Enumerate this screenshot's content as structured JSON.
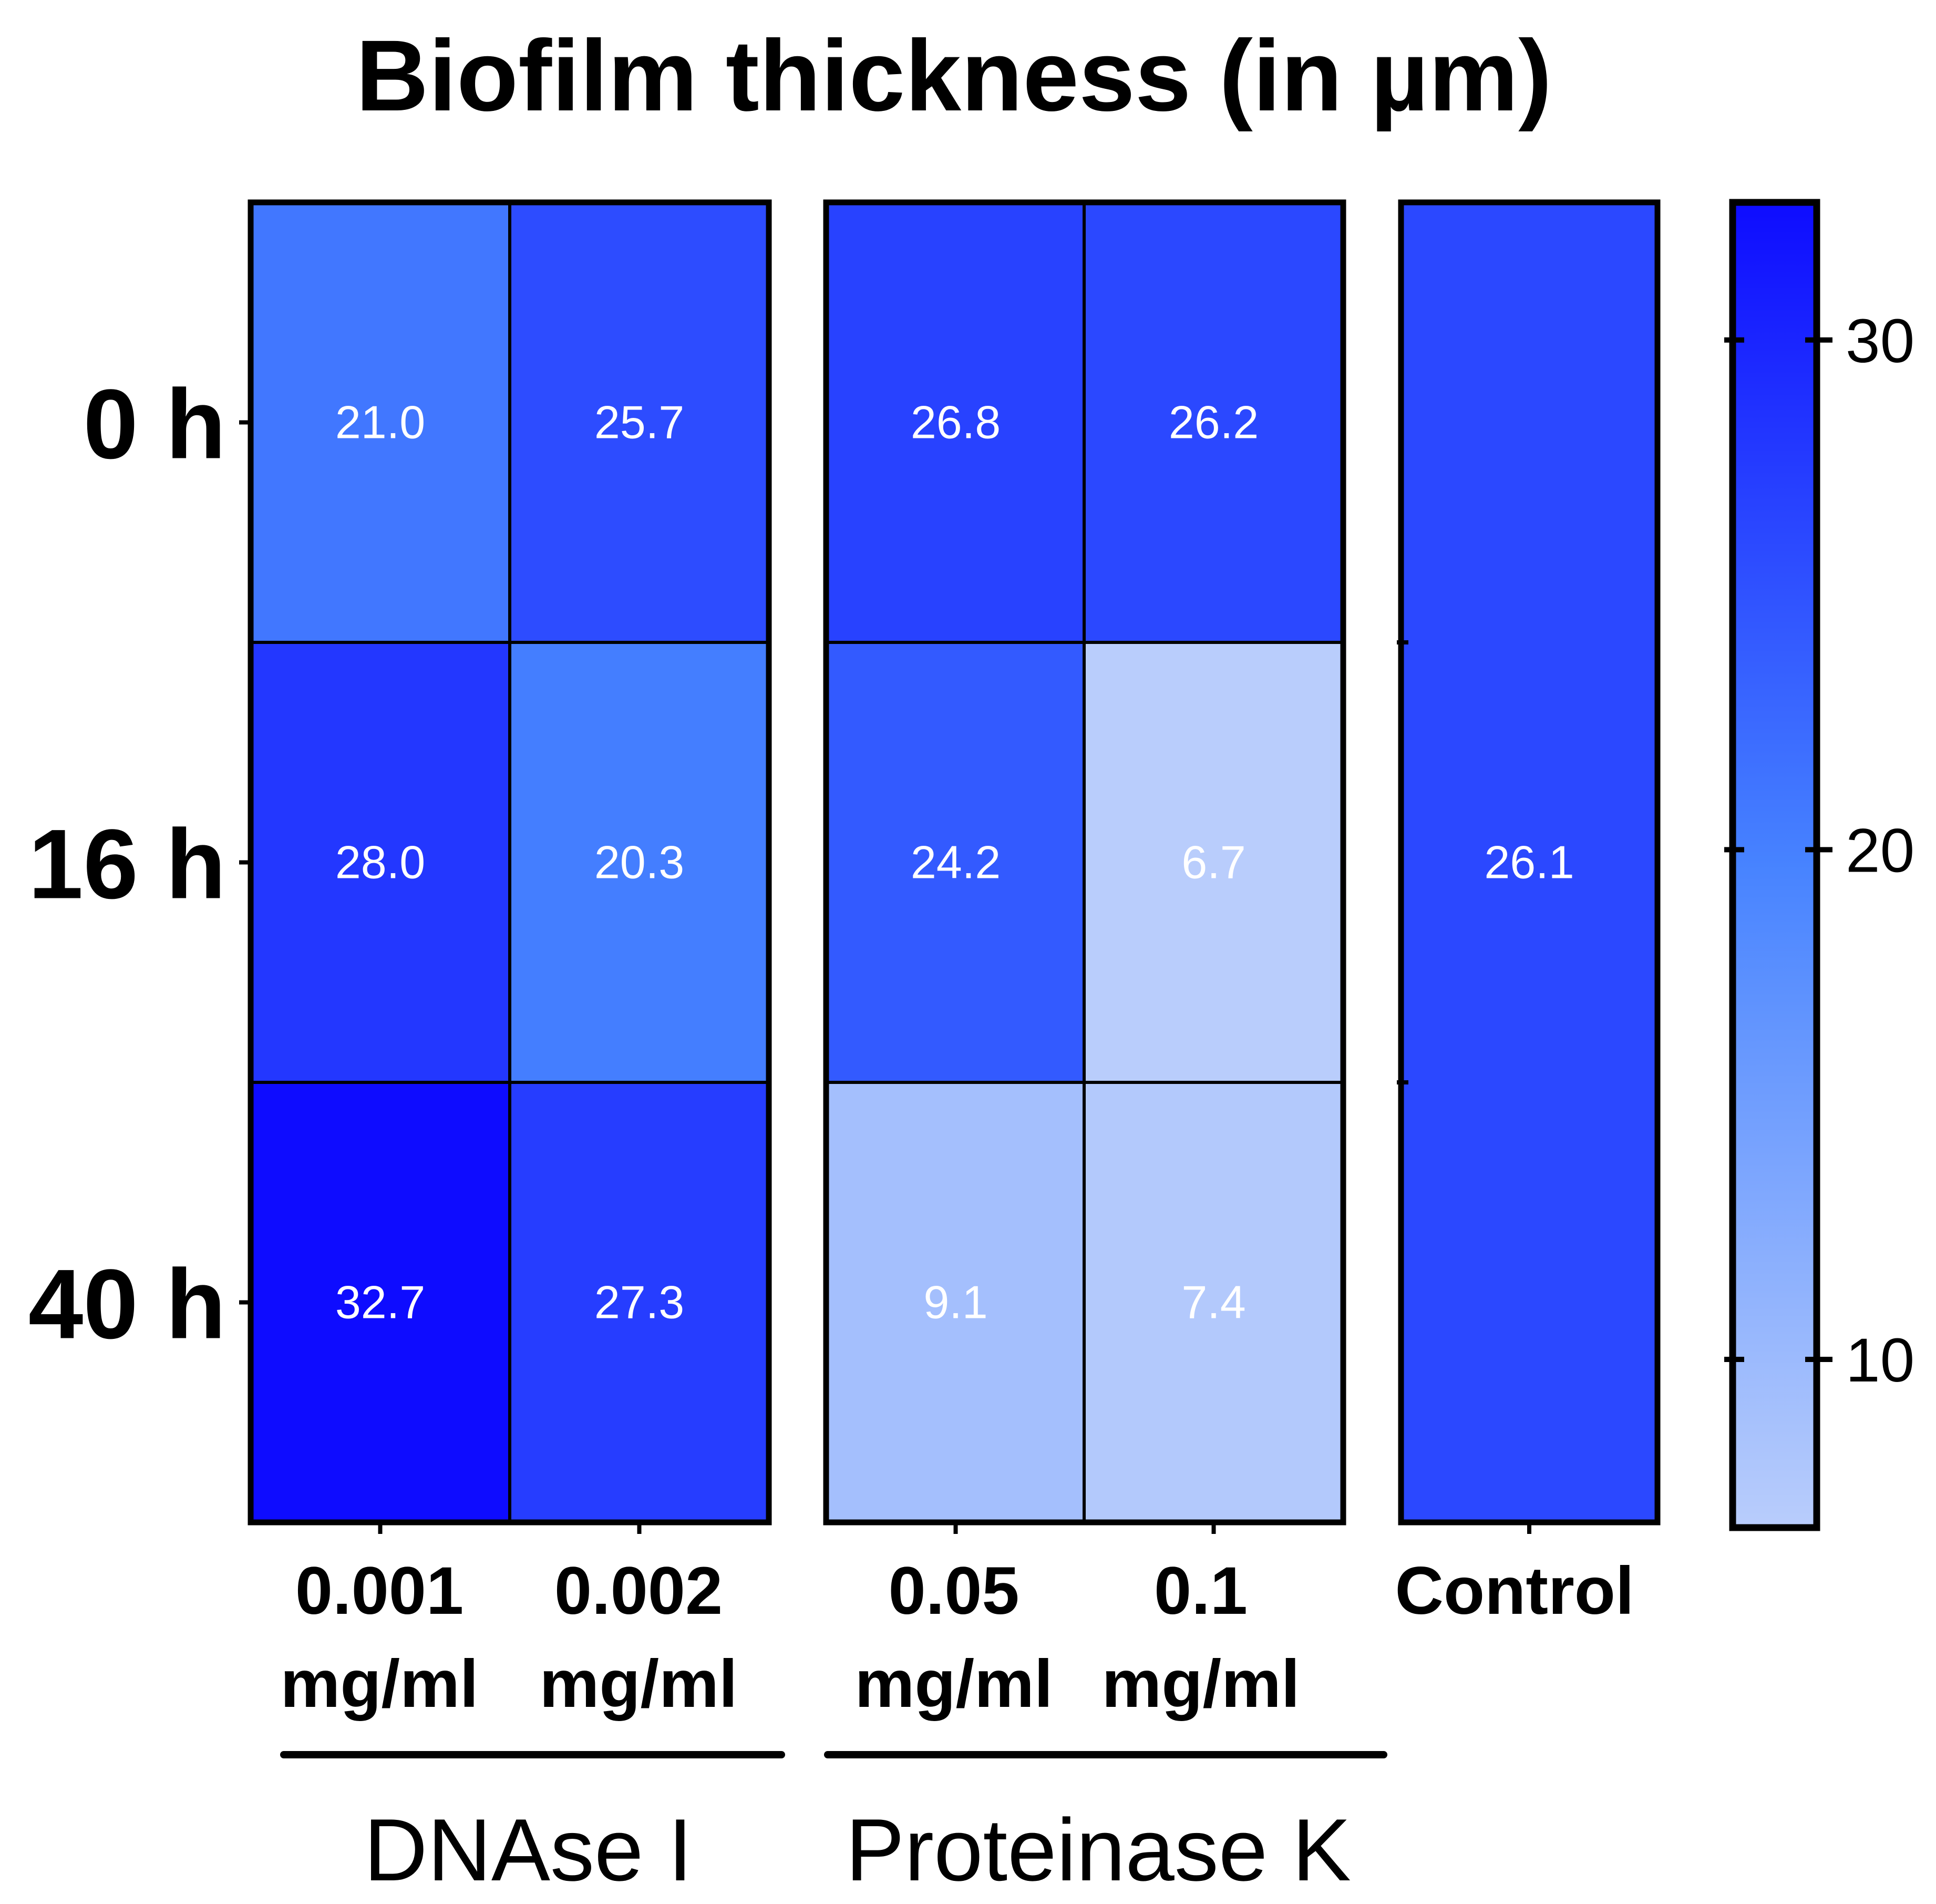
{
  "chart_data": {
    "type": "heatmap",
    "title": "Biofilm thickness (in µm)",
    "rows": [
      "0 h",
      "16 h",
      "40 h"
    ],
    "groups": [
      {
        "name": "DNAse I",
        "columns": [
          {
            "line1": "0.001",
            "line2": "mg/ml",
            "values": [
              21.0,
              28.0,
              32.7
            ]
          },
          {
            "line1": "0.002",
            "line2": "mg/ml",
            "values": [
              25.7,
              20.3,
              27.3
            ]
          }
        ]
      },
      {
        "name": "Proteinase K",
        "columns": [
          {
            "line1": "0.05",
            "line2": "mg/ml",
            "values": [
              26.8,
              24.2,
              9.1
            ]
          },
          {
            "line1": "0.1",
            "line2": "mg/ml",
            "values": [
              26.2,
              6.7,
              7.4
            ]
          }
        ]
      }
    ],
    "control": {
      "label": "Control",
      "value": 26.1
    },
    "colorbar": {
      "min": 6.7,
      "max": 32.7,
      "ticks": [
        10,
        20,
        30
      ],
      "tick_labels": [
        "10",
        "20",
        "30"
      ],
      "low_color": "#b9cdfc",
      "mid_color": "#4783ff",
      "high_color": "#0e0cff"
    },
    "cell_text_format": "one decimal"
  }
}
